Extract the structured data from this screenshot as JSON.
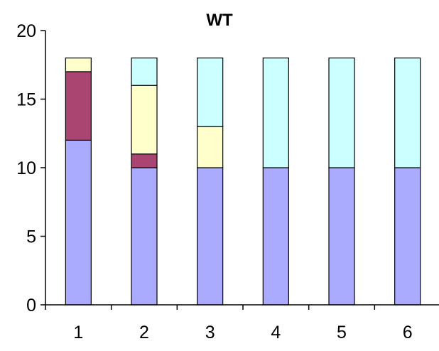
{
  "chart_data": {
    "type": "bar",
    "stacked": true,
    "title": "WT",
    "xlabel": "",
    "ylabel": "",
    "categories": [
      "1",
      "2",
      "3",
      "4",
      "5",
      "6"
    ],
    "ylim": [
      0,
      20
    ],
    "yticks": [
      0,
      5,
      10,
      15,
      20
    ],
    "grid": false,
    "legend": "none",
    "series": [
      {
        "color": "#aaaaff",
        "values": [
          12,
          10,
          10,
          10,
          10,
          10
        ]
      },
      {
        "color": "#a94570",
        "values": [
          5,
          1,
          0,
          0,
          0,
          0
        ]
      },
      {
        "color": "#ffffcc",
        "values": [
          1,
          5,
          3,
          0,
          0,
          0
        ]
      },
      {
        "color": "#ccffff",
        "values": [
          0,
          2,
          5,
          8,
          8,
          8
        ]
      }
    ]
  }
}
